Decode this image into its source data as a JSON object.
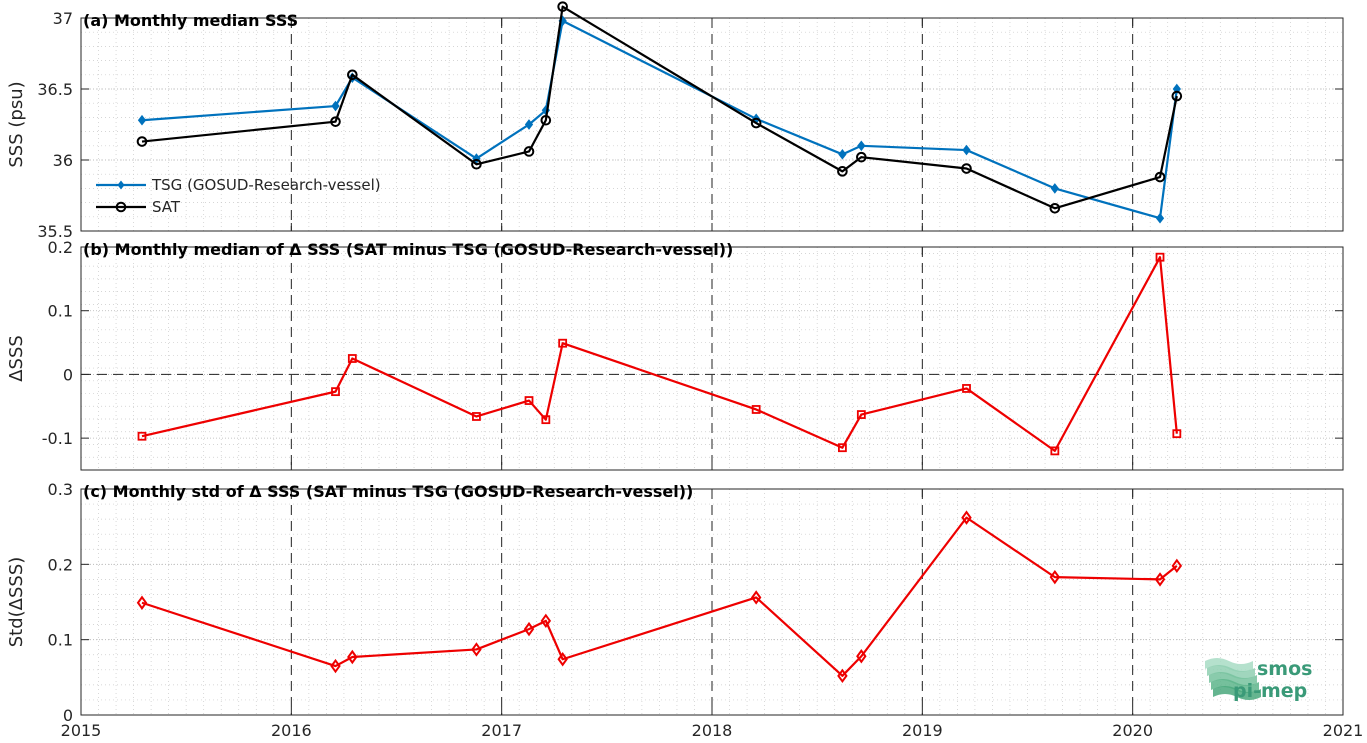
{
  "chart_data": [
    {
      "type": "line",
      "title": "(a) Monthly median SSS",
      "ylabel": "SSS (psu)",
      "xlim": [
        2015,
        2021
      ],
      "ylim": [
        35.5,
        37
      ],
      "yticks": [
        35.5,
        36,
        36.5,
        37
      ],
      "ytick_labels": [
        "35.5",
        "36",
        "36.5",
        "37"
      ],
      "grid": true,
      "legend_position": "lower-left",
      "series": [
        {
          "name": "TSG (GOSUD-Research-vessel)",
          "color": "#0072BD",
          "marker": "diamond-filled",
          "x": [
            2015.29,
            2016.21,
            2016.29,
            2016.88,
            2017.13,
            2017.21,
            2017.29,
            2018.21,
            2018.62,
            2018.71,
            2019.21,
            2019.63,
            2020.13,
            2020.21
          ],
          "y": [
            36.28,
            36.38,
            36.58,
            36.01,
            36.25,
            36.35,
            36.98,
            36.29,
            36.04,
            36.1,
            36.07,
            35.8,
            35.59,
            36.5
          ]
        },
        {
          "name": "SAT",
          "color": "#000000",
          "marker": "circle-open",
          "x": [
            2015.29,
            2016.21,
            2016.29,
            2016.88,
            2017.13,
            2017.21,
            2017.29,
            2018.21,
            2018.62,
            2018.71,
            2019.21,
            2019.63,
            2020.13,
            2020.21
          ],
          "y": [
            36.13,
            36.27,
            36.6,
            35.97,
            36.06,
            36.28,
            37.08,
            36.26,
            35.92,
            36.02,
            35.94,
            35.66,
            35.88,
            36.45
          ]
        }
      ]
    },
    {
      "type": "line",
      "title": "(b) Monthly median of Δ SSS (SAT minus TSG (GOSUD-Research-vessel))",
      "ylabel": "ΔSSS",
      "xlim": [
        2015,
        2021
      ],
      "ylim": [
        -0.15,
        0.2
      ],
      "yticks": [
        -0.1,
        0,
        0.1,
        0.2
      ],
      "ytick_labels": [
        "-0.1",
        "0",
        "0.1",
        "0.2"
      ],
      "zero_line": true,
      "grid": true,
      "series": [
        {
          "color": "#EE0000",
          "marker": "square-open",
          "x": [
            2015.29,
            2016.21,
            2016.29,
            2016.88,
            2017.13,
            2017.21,
            2017.29,
            2018.21,
            2018.62,
            2018.71,
            2019.21,
            2019.63,
            2020.13,
            2020.21
          ],
          "y": [
            -0.097,
            -0.027,
            0.025,
            -0.066,
            -0.041,
            -0.071,
            0.049,
            -0.055,
            -0.115,
            -0.063,
            -0.022,
            -0.12,
            0.184,
            -0.093
          ]
        }
      ]
    },
    {
      "type": "line",
      "title": "(c) Monthly std of Δ SSS (SAT minus TSG (GOSUD-Research-vessel))",
      "ylabel": "Std(ΔSSS)",
      "xlim": [
        2015,
        2021
      ],
      "ylim": [
        0,
        0.3
      ],
      "yticks": [
        0,
        0.1,
        0.2,
        0.3
      ],
      "ytick_labels": [
        "0",
        "0.1",
        "0.2",
        "0.3"
      ],
      "xticks": [
        2015,
        2016,
        2017,
        2018,
        2019,
        2020,
        2021
      ],
      "xtick_labels": [
        "2015",
        "2016",
        "2017",
        "2018",
        "2019",
        "2020",
        "2021"
      ],
      "grid": true,
      "series": [
        {
          "color": "#EE0000",
          "marker": "diamond-open",
          "x": [
            2015.29,
            2016.21,
            2016.29,
            2016.88,
            2017.13,
            2017.21,
            2017.29,
            2018.21,
            2018.62,
            2018.71,
            2019.21,
            2019.63,
            2020.13,
            2020.21
          ],
          "y": [
            0.149,
            0.065,
            0.077,
            0.087,
            0.114,
            0.125,
            0.074,
            0.156,
            0.052,
            0.078,
            0.262,
            0.183,
            0.18,
            0.198
          ]
        }
      ]
    }
  ],
  "year_separators": [
    2016,
    2017,
    2018,
    2019,
    2020
  ],
  "logo": {
    "line1": "smos",
    "line2": "pi-mep"
  }
}
